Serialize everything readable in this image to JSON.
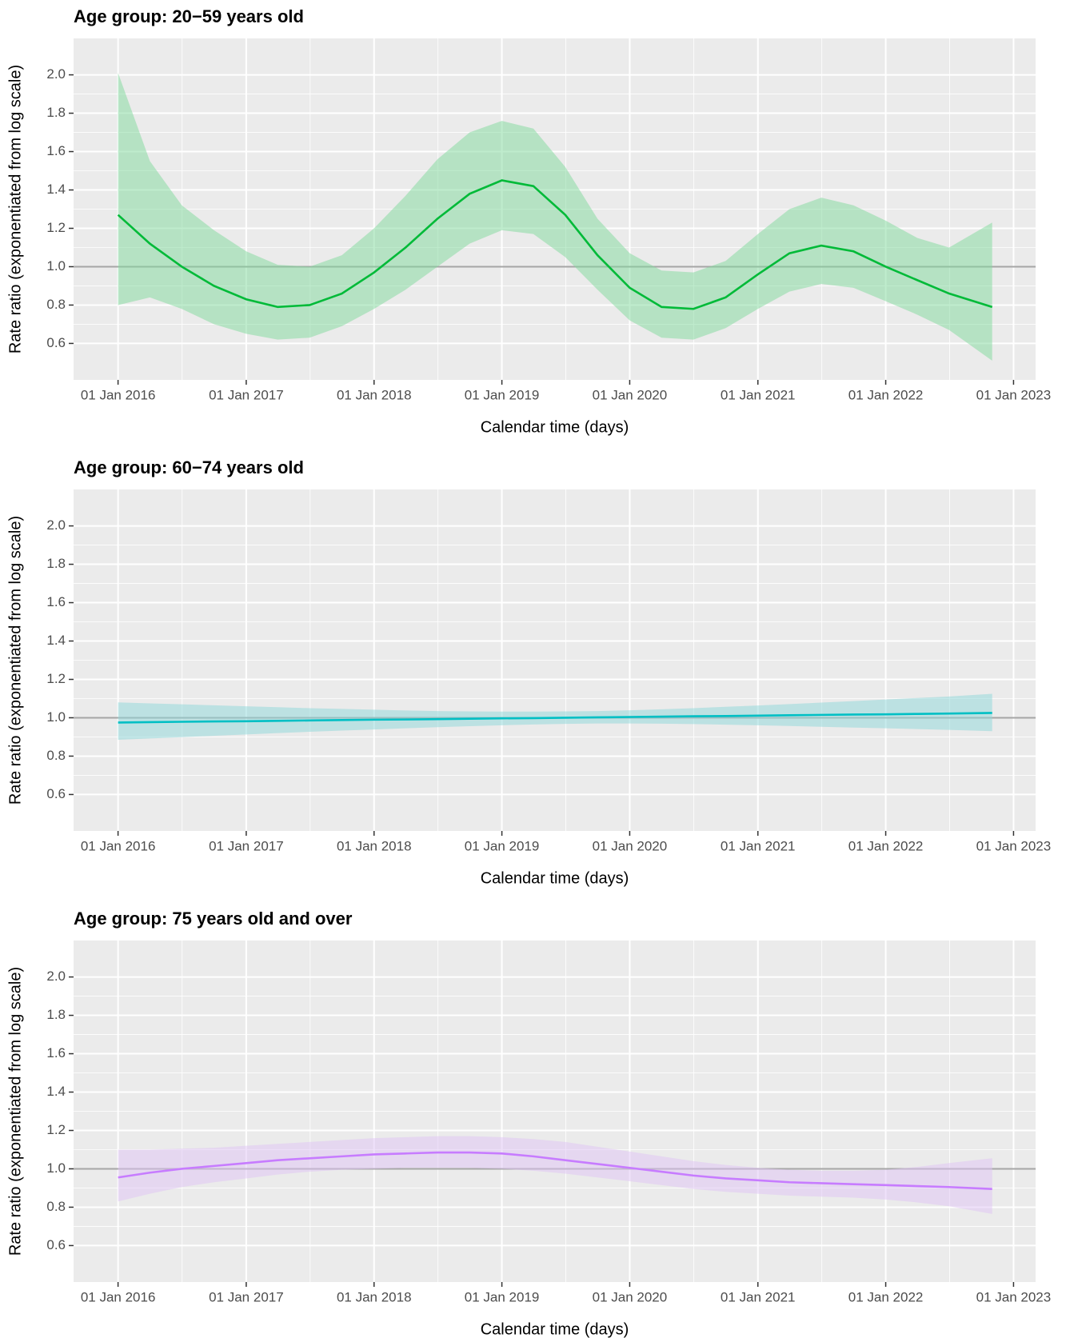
{
  "chart_data": [
    {
      "type": "line",
      "title": "Age group: 20−59 years old",
      "xlabel": "Calendar time (days)",
      "ylabel": "Rate ratio (exponentiated from log scale)",
      "x": [
        "2016-01-01",
        "2016-04-01",
        "2016-07-01",
        "2016-10-01",
        "2017-01-01",
        "2017-04-01",
        "2017-07-01",
        "2017-10-01",
        "2018-01-01",
        "2018-04-01",
        "2018-07-01",
        "2018-10-01",
        "2019-01-01",
        "2019-04-01",
        "2019-07-01",
        "2019-10-01",
        "2020-01-01",
        "2020-04-01",
        "2020-07-01",
        "2020-10-01",
        "2021-01-01",
        "2021-04-01",
        "2021-07-01",
        "2021-10-01",
        "2022-01-01",
        "2022-04-01",
        "2022-07-01",
        "2022-11-01"
      ],
      "values": [
        1.27,
        1.12,
        1.0,
        0.9,
        0.83,
        0.79,
        0.8,
        0.86,
        0.97,
        1.1,
        1.25,
        1.38,
        1.45,
        1.42,
        1.27,
        1.06,
        0.89,
        0.79,
        0.78,
        0.84,
        0.96,
        1.07,
        1.11,
        1.08,
        1.0,
        0.93,
        0.86,
        0.79
      ],
      "upper": [
        2.01,
        1.55,
        1.32,
        1.19,
        1.08,
        1.01,
        1.0,
        1.06,
        1.2,
        1.37,
        1.56,
        1.7,
        1.76,
        1.72,
        1.52,
        1.25,
        1.07,
        0.98,
        0.97,
        1.03,
        1.17,
        1.3,
        1.36,
        1.32,
        1.24,
        1.15,
        1.1,
        1.23
      ],
      "lower": [
        0.8,
        0.84,
        0.78,
        0.7,
        0.65,
        0.62,
        0.63,
        0.69,
        0.78,
        0.88,
        1.0,
        1.12,
        1.19,
        1.17,
        1.05,
        0.88,
        0.72,
        0.63,
        0.62,
        0.68,
        0.78,
        0.87,
        0.91,
        0.89,
        0.82,
        0.75,
        0.67,
        0.51
      ],
      "color": "#00BA38",
      "band_color": "#7FD99B",
      "xlim": [
        "2015-08-27",
        "2023-03-05"
      ],
      "xticks": [
        {
          "value": "2016-01-01",
          "label": "01 Jan 2016"
        },
        {
          "value": "2017-01-01",
          "label": "01 Jan 2017"
        },
        {
          "value": "2018-01-01",
          "label": "01 Jan 2018"
        },
        {
          "value": "2019-01-01",
          "label": "01 Jan 2019"
        },
        {
          "value": "2020-01-01",
          "label": "01 Jan 2020"
        },
        {
          "value": "2021-01-01",
          "label": "01 Jan 2021"
        },
        {
          "value": "2022-01-01",
          "label": "01 Jan 2022"
        },
        {
          "value": "2023-01-01",
          "label": "01 Jan 2023"
        }
      ],
      "ylim": [
        0.41,
        2.19
      ],
      "yticks": [
        0.6,
        0.8,
        {
          "value": 1,
          "label": "1.0"
        },
        1.2,
        1.4,
        1.6,
        1.8,
        {
          "value": 2,
          "label": "2.0"
        }
      ],
      "reference_line": 1,
      "grid": true
    },
    {
      "type": "line",
      "title": "Age group: 60−74 years old",
      "xlabel": "Calendar time (days)",
      "ylabel": "Rate ratio (exponentiated from log scale)",
      "x": [
        "2016-01-01",
        "2016-04-01",
        "2016-07-01",
        "2016-10-01",
        "2017-01-01",
        "2017-04-01",
        "2017-07-01",
        "2017-10-01",
        "2018-01-01",
        "2018-04-01",
        "2018-07-01",
        "2018-10-01",
        "2019-01-01",
        "2019-04-01",
        "2019-07-01",
        "2019-10-01",
        "2020-01-01",
        "2020-04-01",
        "2020-07-01",
        "2020-10-01",
        "2021-01-01",
        "2021-04-01",
        "2021-07-01",
        "2021-10-01",
        "2022-01-01",
        "2022-04-01",
        "2022-07-01",
        "2022-11-01"
      ],
      "values": [
        0.975,
        0.977,
        0.979,
        0.981,
        0.982,
        0.984,
        0.986,
        0.988,
        0.99,
        0.991,
        0.993,
        0.995,
        0.997,
        0.998,
        1.0,
        1.002,
        1.004,
        1.006,
        1.008,
        1.009,
        1.011,
        1.013,
        1.015,
        1.017,
        1.018,
        1.02,
        1.022,
        1.025
      ],
      "upper": [
        1.08,
        1.075,
        1.07,
        1.065,
        1.06,
        1.055,
        1.05,
        1.046,
        1.042,
        1.038,
        1.035,
        1.033,
        1.032,
        1.032,
        1.033,
        1.035,
        1.039,
        1.044,
        1.05,
        1.057,
        1.064,
        1.071,
        1.079,
        1.087,
        1.095,
        1.103,
        1.111,
        1.125
      ],
      "lower": [
        0.885,
        0.892,
        0.899,
        0.906,
        0.913,
        0.92,
        0.927,
        0.933,
        0.939,
        0.945,
        0.951,
        0.956,
        0.961,
        0.965,
        0.968,
        0.97,
        0.97,
        0.969,
        0.967,
        0.964,
        0.961,
        0.957,
        0.953,
        0.949,
        0.945,
        0.941,
        0.937,
        0.93
      ],
      "color": "#00BFC4",
      "band_color": "#8ED8DA",
      "xlim": [
        "2015-08-27",
        "2023-03-05"
      ],
      "xticks": [
        {
          "value": "2016-01-01",
          "label": "01 Jan 2016"
        },
        {
          "value": "2017-01-01",
          "label": "01 Jan 2017"
        },
        {
          "value": "2018-01-01",
          "label": "01 Jan 2018"
        },
        {
          "value": "2019-01-01",
          "label": "01 Jan 2019"
        },
        {
          "value": "2020-01-01",
          "label": "01 Jan 2020"
        },
        {
          "value": "2021-01-01",
          "label": "01 Jan 2021"
        },
        {
          "value": "2022-01-01",
          "label": "01 Jan 2022"
        },
        {
          "value": "2023-01-01",
          "label": "01 Jan 2023"
        }
      ],
      "ylim": [
        0.41,
        2.19
      ],
      "yticks": [
        0.6,
        0.8,
        {
          "value": 1,
          "label": "1.0"
        },
        1.2,
        1.4,
        1.6,
        1.8,
        {
          "value": 2,
          "label": "2.0"
        }
      ],
      "reference_line": 1,
      "grid": true
    },
    {
      "type": "line",
      "title": "Age group: 75 years old and over",
      "xlabel": "Calendar time (days)",
      "ylabel": "Rate ratio (exponentiated from log scale)",
      "x": [
        "2016-01-01",
        "2016-04-01",
        "2016-07-01",
        "2016-10-01",
        "2017-01-01",
        "2017-04-01",
        "2017-07-01",
        "2017-10-01",
        "2018-01-01",
        "2018-04-01",
        "2018-07-01",
        "2018-10-01",
        "2019-01-01",
        "2019-04-01",
        "2019-07-01",
        "2019-10-01",
        "2020-01-01",
        "2020-04-01",
        "2020-07-01",
        "2020-10-01",
        "2021-01-01",
        "2021-04-01",
        "2021-07-01",
        "2021-10-01",
        "2022-01-01",
        "2022-04-01",
        "2022-07-01",
        "2022-11-01"
      ],
      "values": [
        0.955,
        0.98,
        1.0,
        1.015,
        1.03,
        1.045,
        1.055,
        1.065,
        1.075,
        1.08,
        1.085,
        1.085,
        1.08,
        1.065,
        1.045,
        1.025,
        1.005,
        0.985,
        0.965,
        0.95,
        0.94,
        0.93,
        0.925,
        0.92,
        0.915,
        0.91,
        0.905,
        0.895
      ],
      "upper": [
        1.1,
        1.1,
        1.105,
        1.11,
        1.12,
        1.13,
        1.14,
        1.15,
        1.16,
        1.165,
        1.17,
        1.17,
        1.165,
        1.155,
        1.14,
        1.115,
        1.09,
        1.065,
        1.04,
        1.02,
        1.005,
        0.995,
        0.99,
        0.99,
        0.995,
        1.01,
        1.03,
        1.055
      ],
      "lower": [
        0.83,
        0.87,
        0.905,
        0.93,
        0.95,
        0.97,
        0.985,
        0.995,
        1.0,
        1.005,
        1.005,
        1.005,
        1.0,
        0.99,
        0.975,
        0.955,
        0.935,
        0.915,
        0.895,
        0.88,
        0.87,
        0.86,
        0.855,
        0.85,
        0.84,
        0.825,
        0.805,
        0.765
      ],
      "color": "#C77CFF",
      "band_color": "#E0C4F5",
      "xlim": [
        "2015-08-27",
        "2023-03-05"
      ],
      "xticks": [
        {
          "value": "2016-01-01",
          "label": "01 Jan 2016"
        },
        {
          "value": "2017-01-01",
          "label": "01 Jan 2017"
        },
        {
          "value": "2018-01-01",
          "label": "01 Jan 2018"
        },
        {
          "value": "2019-01-01",
          "label": "01 Jan 2019"
        },
        {
          "value": "2020-01-01",
          "label": "01 Jan 2020"
        },
        {
          "value": "2021-01-01",
          "label": "01 Jan 2021"
        },
        {
          "value": "2022-01-01",
          "label": "01 Jan 2022"
        },
        {
          "value": "2023-01-01",
          "label": "01 Jan 2023"
        }
      ],
      "ylim": [
        0.41,
        2.19
      ],
      "yticks": [
        0.6,
        0.8,
        {
          "value": 1,
          "label": "1.0"
        },
        1.2,
        1.4,
        1.6,
        1.8,
        {
          "value": 2,
          "label": "2.0"
        }
      ],
      "reference_line": 1,
      "grid": true
    }
  ]
}
